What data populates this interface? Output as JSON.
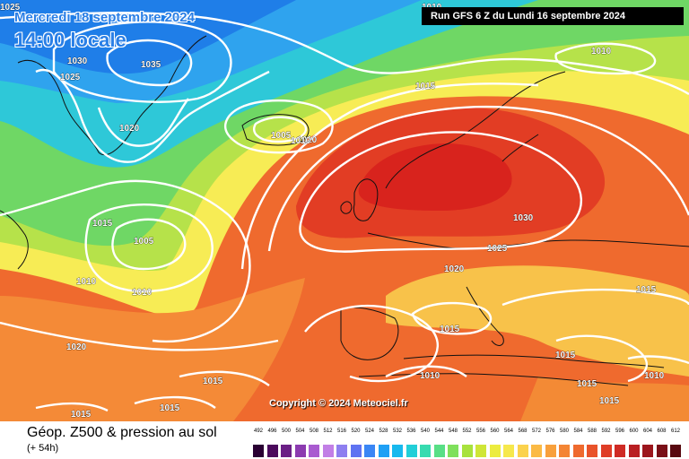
{
  "header": {
    "date": "Mercredi 18 septembre 2024",
    "local_time": "14:00 locale",
    "run": "Run GFS 6 Z du Lundi 16 septembre 2024"
  },
  "copyright": "Copyright © 2024 Meteociel.fr",
  "footer": {
    "title": "Géop. Z500 & pression au sol",
    "lead": "(+ 54h)"
  },
  "pressure_labels": [
    {
      "text": "1025"
    },
    {
      "text": "1030"
    },
    {
      "text": "1035"
    },
    {
      "text": "1025"
    },
    {
      "text": "1020"
    },
    {
      "text": "1010"
    },
    {
      "text": "1015"
    },
    {
      "text": "1005"
    },
    {
      "text": "1010"
    },
    {
      "text": "1010"
    },
    {
      "text": "1015"
    },
    {
      "text": "1005"
    },
    {
      "text": "1010"
    },
    {
      "text": "1010"
    },
    {
      "text": "1030"
    },
    {
      "text": "1025"
    },
    {
      "text": "1020"
    },
    {
      "text": "1015"
    },
    {
      "text": "1015"
    },
    {
      "text": "1020"
    },
    {
      "text": "1015"
    },
    {
      "text": "1010"
    },
    {
      "text": "1015"
    },
    {
      "text": "1010"
    },
    {
      "text": "1015"
    },
    {
      "text": "1015"
    },
    {
      "text": "1015"
    },
    {
      "text": "1015"
    },
    {
      "text": "1010"
    }
  ],
  "legend": {
    "ticks": [
      "492",
      "496",
      "500",
      "504",
      "508",
      "512",
      "516",
      "520",
      "524",
      "528",
      "532",
      "536",
      "540",
      "544",
      "548",
      "552",
      "556",
      "560",
      "564",
      "568",
      "572",
      "576",
      "580",
      "584",
      "588",
      "592",
      "596",
      "600",
      "604",
      "608",
      "612"
    ],
    "colors": [
      "#2a0033",
      "#4b0a5c",
      "#6b1f86",
      "#8c3bb0",
      "#a95bd0",
      "#c27fe6",
      "#8e7ff0",
      "#5f73f2",
      "#3a86f5",
      "#1fa0f5",
      "#18b9ee",
      "#22cfd8",
      "#37dbb0",
      "#58df86",
      "#7fe05c",
      "#a8e23d",
      "#cfe637",
      "#ecec3f",
      "#f6e84c",
      "#fbd24d",
      "#fbba45",
      "#f8a03c",
      "#f48534",
      "#ef6a2e",
      "#e9532a",
      "#df3d27",
      "#cf2b25",
      "#b91f22",
      "#9c161d",
      "#7a0f17",
      "#580910"
    ]
  },
  "map_colors": {
    "blue_dark": "#1f7ee8",
    "blue": "#2fa3ee",
    "cyan": "#2ec8d8",
    "green": "#6fd765",
    "lime": "#b6e24a",
    "yellow": "#f7ec55",
    "orange": "#f8a63c",
    "red": "#ef5a2a",
    "deep_red": "#de2a1f",
    "isobar": "#ffffff",
    "coast": "#111111"
  }
}
